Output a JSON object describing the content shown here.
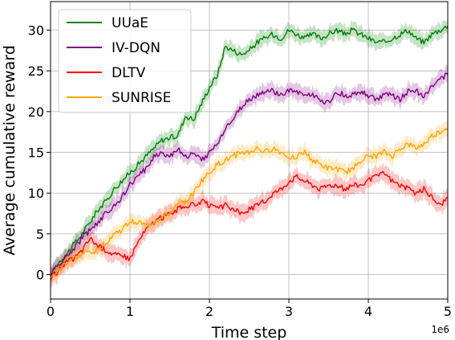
{
  "chart_data": {
    "type": "line",
    "title": "",
    "xlabel": "Time step",
    "ylabel": "Average cumulative reward",
    "x_offset_text": "1e6",
    "xlim": [
      0,
      5
    ],
    "ylim": [
      -3,
      33.5
    ],
    "xticks": [
      0,
      1,
      2,
      3,
      4,
      5
    ],
    "xtick_labels": [
      "0",
      "1",
      "2",
      "3",
      "4",
      "5"
    ],
    "yticks": [
      0,
      5,
      10,
      15,
      20,
      25,
      30
    ],
    "ytick_labels": [
      "0",
      "5",
      "10",
      "15",
      "20",
      "25",
      "30"
    ],
    "grid": true,
    "legend_position": "top-left",
    "x": [
      0,
      0.1,
      0.2,
      0.3,
      0.4,
      0.5,
      0.6,
      0.7,
      0.8,
      0.9,
      1.0,
      1.1,
      1.2,
      1.3,
      1.4,
      1.5,
      1.6,
      1.7,
      1.8,
      1.9,
      2.0,
      2.1,
      2.2,
      2.3,
      2.4,
      2.5,
      2.6,
      2.7,
      2.8,
      2.9,
      3.0,
      3.1,
      3.2,
      3.3,
      3.4,
      3.5,
      3.6,
      3.7,
      3.8,
      3.9,
      4.0,
      4.1,
      4.2,
      4.3,
      4.4,
      4.5,
      4.6,
      4.7,
      4.8,
      4.9,
      5.0
    ],
    "series": [
      {
        "name": "UUaE",
        "color": "#008000",
        "values": [
          0,
          1.5,
          2.5,
          3.8,
          5.0,
          6.5,
          8.0,
          9.0,
          10.5,
          11.5,
          12.5,
          13.5,
          14.5,
          15.5,
          16.5,
          16.8,
          17.0,
          19.5,
          19.0,
          21.0,
          23.0,
          24.5,
          28.0,
          27.5,
          27.0,
          27.5,
          28.5,
          29.0,
          29.5,
          29.0,
          30.0,
          29.5,
          29.0,
          29.5,
          29.0,
          29.5,
          30.0,
          29.5,
          30.0,
          29.5,
          29.0,
          28.5,
          28.5,
          29.0,
          29.5,
          30.0,
          29.0,
          28.5,
          29.5,
          30.0,
          30.5
        ],
        "band": 0.9
      },
      {
        "name": "IV-DQN",
        "color": "#800080",
        "values": [
          0,
          1.2,
          2.2,
          3.3,
          4.5,
          5.5,
          6.5,
          7.5,
          8.5,
          9.5,
          11.0,
          12.0,
          13.0,
          14.5,
          15.0,
          14.5,
          15.5,
          14.5,
          14.8,
          14.0,
          15.0,
          16.0,
          18.0,
          19.0,
          20.5,
          21.5,
          22.0,
          22.5,
          22.5,
          22.0,
          22.5,
          22.5,
          22.0,
          22.0,
          21.5,
          21.0,
          22.5,
          22.0,
          22.0,
          22.5,
          22.0,
          21.5,
          22.0,
          22.0,
          21.5,
          22.5,
          22.5,
          22.0,
          23.0,
          24.0,
          24.5
        ],
        "band": 0.9
      },
      {
        "name": "DLTV",
        "color": "#ff0000",
        "values": [
          -0.5,
          0.5,
          1.5,
          2.0,
          3.0,
          4.5,
          3.5,
          3.0,
          2.5,
          2.2,
          2.0,
          4.0,
          5.5,
          6.5,
          7.0,
          7.5,
          8.0,
          8.5,
          8.5,
          9.0,
          8.5,
          8.0,
          8.5,
          8.0,
          7.5,
          8.0,
          8.5,
          9.0,
          10.0,
          10.5,
          11.5,
          12.0,
          11.5,
          11.0,
          10.5,
          11.0,
          11.0,
          10.5,
          11.0,
          11.0,
          11.5,
          12.0,
          12.5,
          11.5,
          11.0,
          10.5,
          10.0,
          10.5,
          9.5,
          8.5,
          9.5
        ],
        "band": 1.0
      },
      {
        "name": "SUNRISE",
        "color": "#ffa500",
        "values": [
          -0.5,
          0.5,
          1.5,
          2.0,
          2.5,
          2.8,
          3.0,
          4.0,
          5.0,
          5.5,
          6.5,
          6.5,
          6.0,
          6.5,
          7.0,
          7.5,
          8.5,
          9.0,
          10.0,
          11.5,
          12.5,
          13.5,
          14.0,
          14.5,
          15.0,
          15.0,
          15.5,
          15.0,
          15.5,
          15.0,
          14.5,
          14.5,
          15.0,
          14.0,
          13.5,
          13.0,
          13.0,
          12.5,
          13.0,
          14.0,
          14.5,
          14.5,
          15.0,
          14.5,
          15.5,
          16.0,
          15.5,
          16.0,
          17.0,
          17.5,
          18.0
        ],
        "band": 0.9
      }
    ]
  }
}
